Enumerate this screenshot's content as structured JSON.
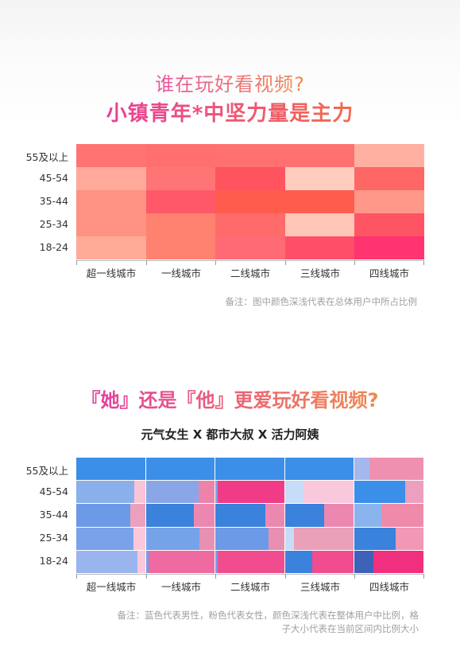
{
  "section1": {
    "title_line1": "谁在玩好看视频?",
    "title_line2": "小镇青年*中坚力量是主力",
    "note": "备注：图中颜色深浅代表在总体用户中所占比例"
  },
  "section2": {
    "title": "『她』还是『他』更爱玩好看视频?",
    "subtitle": "元气女生 X 都市大叔 X 活力阿姨",
    "note_line1": "备注：蓝色代表男性，粉色代表女性，颜色深浅代表在整体用户中比例，格",
    "note_line2": "子大小代表在当前区间内比例大小"
  },
  "chart_data": [
    {
      "type": "heatmap",
      "title": "谁在玩好看视频?",
      "subtitle": "小镇青年*中坚力量是主力",
      "x_categories": [
        "超一线城市",
        "一线城市",
        "二线城市",
        "三线城市",
        "四线城市"
      ],
      "y_categories": [
        "55及以上",
        "45-54",
        "35-44",
        "25-34",
        "18-24"
      ],
      "cell_colors": [
        [
          "#ff7373",
          "#ff6f6f",
          "#ff7070",
          "#ff7070",
          "#ffb0a0"
        ],
        [
          "#ffaa9a",
          "#ff7575",
          "#ff5360",
          "#ffcdc0",
          "#ff6666"
        ],
        [
          "#ff9282",
          "#ff5868",
          "#ff5c4e",
          "#ff5c4e",
          "#ff9888"
        ],
        [
          "#ff9282",
          "#ff8270",
          "#ff6a6a",
          "#ffc5b5",
          "#ff5464"
        ],
        [
          "#ffab98",
          "#ff8270",
          "#ff6a74",
          "#ff4f68",
          "#ff3470"
        ]
      ],
      "legend_note": "备注：图中颜色深浅代表在总体用户中所占比例"
    },
    {
      "type": "heatmap",
      "title": "『她』还是『他』更爱玩好看视频?",
      "subtitle": "元气女生 X 都市大叔 X 活力阿姨",
      "x_categories": [
        "超一线城市",
        "一线城市",
        "二线城市",
        "三线城市",
        "四线城市"
      ],
      "y_categories": [
        "55及以上",
        "45-54",
        "35-44",
        "25-34",
        "18-24"
      ],
      "male_share": [
        [
          1.0,
          1.0,
          1.0,
          1.0,
          0.22
        ],
        [
          0.84,
          0.77,
          0.03,
          0.27,
          0.73
        ],
        [
          0.78,
          0.7,
          0.72,
          0.57,
          0.39
        ],
        [
          0.83,
          0.78,
          0.77,
          0.13,
          0.6
        ],
        [
          0.89,
          0.03,
          0.03,
          0.39,
          0.28
        ]
      ],
      "male_colors": [
        [
          "#3c8fe8",
          "#3c8fe8",
          "#3c8fe8",
          "#3c8fe8",
          "#a4b8ee"
        ],
        [
          "#8ab0ec",
          "#8aa6e6",
          "#78a6e4",
          "#c6dcf8",
          "#3c8fe8"
        ],
        [
          "#6c9ae6",
          "#3a82dc",
          "#3a82dc",
          "#3a82dc",
          "#8ab4ee"
        ],
        [
          "#7aa2e8",
          "#76a2e8",
          "#6d9ae6",
          "#c6dcf8",
          "#3a82dc"
        ],
        [
          "#9ab4ee",
          "#6fa0e8",
          "#6fa0e8",
          "#3a82dc",
          "#3d62b8"
        ]
      ],
      "female_colors": [
        [
          "#ea8ab0",
          "#ea8ab0",
          "#ea8ab0",
          "#ea8ab0",
          "#f090b0"
        ],
        [
          "#f8c4d6",
          "#ec84aa",
          "#f03c86",
          "#fac8dc",
          "#eaa0be"
        ],
        [
          "#eca0be",
          "#ec88b0",
          "#ec88b0",
          "#ec88b0",
          "#f08aaa"
        ],
        [
          "#fac8da",
          "#e890b2",
          "#e890b2",
          "#eaa0b8",
          "#f098b6"
        ],
        [
          "#fac8da",
          "#ee6aa0",
          "#f04c8e",
          "#f04c8e",
          "#f0307e"
        ]
      ],
      "legend_note": "备注：蓝色代表男性，粉色代表女性，颜色深浅代表在整体用户中比例，格子大小代表在当前区间内比例大小"
    }
  ]
}
